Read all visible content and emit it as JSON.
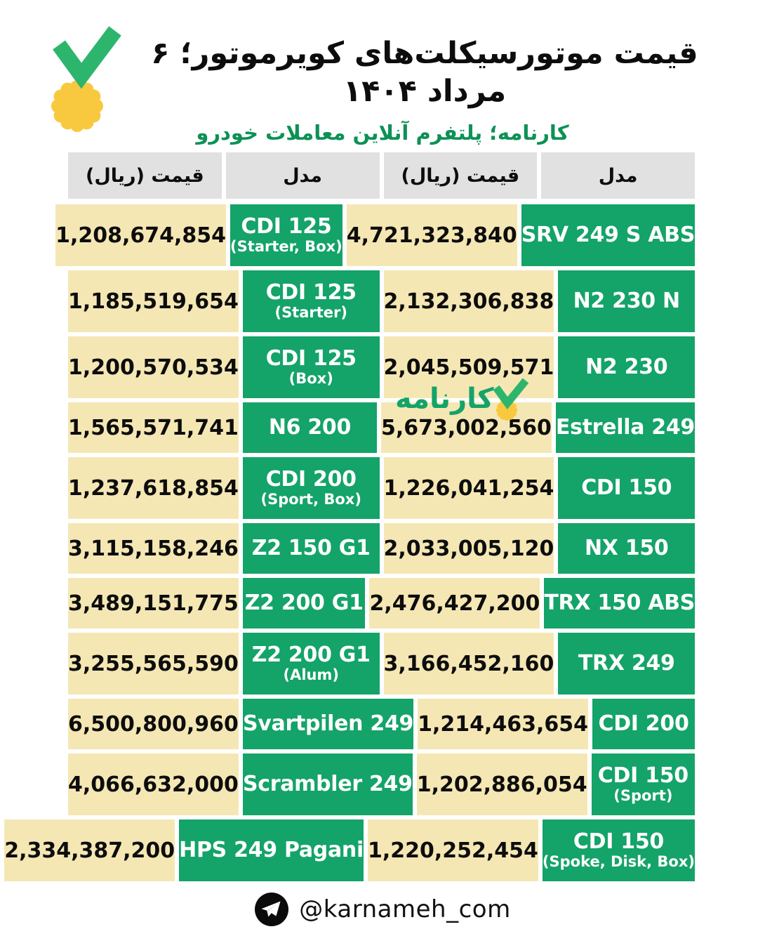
{
  "header": {
    "title": "قیمت موتورسیکلت‌های کویرموتور؛ ۶ مرداد ۱۴۰۴",
    "subtitle": "کارنامه؛ پلتفرم آنلاین معاملات خودرو"
  },
  "colors": {
    "cell_green": "#14a369",
    "subtitle_green": "#0d9155",
    "check_green": "#2eb56d",
    "badge_yellow": "#f8c93f",
    "price_cream": "#f5e7b4",
    "header_gray": "#e1e1e1",
    "text_black": "#0d0d0d"
  },
  "table": {
    "header_model": "مدل",
    "header_price": "قیمت (ریال)",
    "rows": [
      {
        "size": "tall",
        "right": {
          "model": "SRV 249 S ABS",
          "variant": "",
          "price": "4,721,323,840"
        },
        "left": {
          "model": "CDI 125",
          "variant": "(Starter, Box)",
          "price": "1,208,674,854"
        }
      },
      {
        "size": "tall",
        "right": {
          "model": "N2 230 N",
          "variant": "",
          "price": "2,132,306,838"
        },
        "left": {
          "model": "CDI 125",
          "variant": "(Starter)",
          "price": "1,185,519,654"
        }
      },
      {
        "size": "tall",
        "right": {
          "model": "N2 230",
          "variant": "",
          "price": "2,045,509,571"
        },
        "left": {
          "model": "CDI 125",
          "variant": "(Box)",
          "price": "1,200,570,534"
        }
      },
      {
        "size": "short",
        "right": {
          "model": "Estrella 249",
          "variant": "",
          "price": "5,673,002,560"
        },
        "left": {
          "model": "N6 200",
          "variant": "",
          "price": "1,565,571,741"
        }
      },
      {
        "size": "tall",
        "right": {
          "model": "CDI 150",
          "variant": "",
          "price": "1,226,041,254"
        },
        "left": {
          "model": "CDI 200",
          "variant": "(Sport, Box)",
          "price": "1,237,618,854"
        }
      },
      {
        "size": "short",
        "right": {
          "model": "NX 150",
          "variant": "",
          "price": "2,033,005,120"
        },
        "left": {
          "model": "Z2 150 G1",
          "variant": "",
          "price": "3,115,158,246"
        }
      },
      {
        "size": "short",
        "right": {
          "model": "TRX 150 ABS",
          "variant": "",
          "price": "2,476,427,200"
        },
        "left": {
          "model": "Z2 200 G1",
          "variant": "",
          "price": "3,489,151,775"
        }
      },
      {
        "size": "tall",
        "right": {
          "model": "TRX 249",
          "variant": "",
          "price": "3,166,452,160"
        },
        "left": {
          "model": "Z2 200 G1",
          "variant": "(Alum)",
          "price": "3,255,565,590"
        }
      },
      {
        "size": "short",
        "right": {
          "model": "CDI 200",
          "variant": "",
          "price": "1,214,463,654"
        },
        "left": {
          "model": "Svartpilen 249",
          "variant": "",
          "price": "6,500,800,960"
        }
      },
      {
        "size": "tall",
        "right": {
          "model": "CDI 150",
          "variant": "(Sport)",
          "price": "1,202,886,054"
        },
        "left": {
          "model": "Scrambler 249",
          "variant": "",
          "price": "4,066,632,000"
        }
      },
      {
        "size": "tall",
        "right": {
          "model": "CDI 150",
          "variant": "(Spoke, Disk, Box)",
          "price": "1,220,252,454"
        },
        "left": {
          "model": "HPS 249 Pagani",
          "variant": "",
          "price": "2,334,387,200"
        }
      }
    ]
  },
  "watermark": {
    "text": "کارنامه"
  },
  "footer": {
    "handle": "@karnameh_com"
  }
}
